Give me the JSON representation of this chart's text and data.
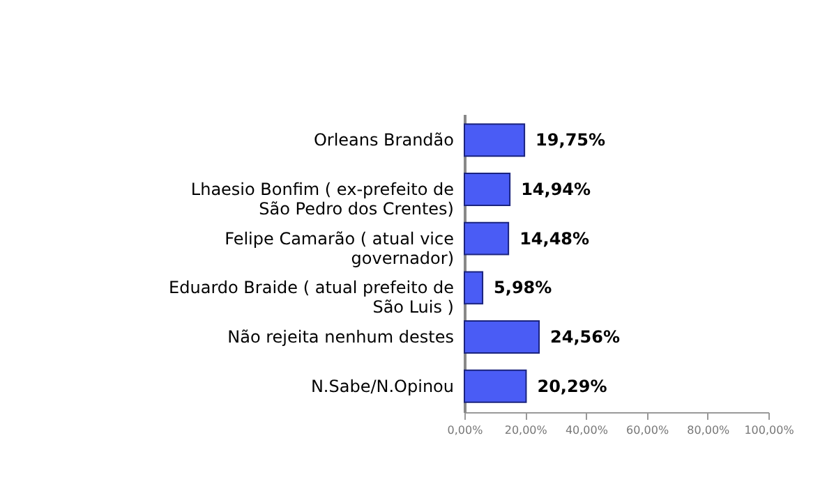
{
  "chart_data": {
    "type": "bar",
    "orientation": "horizontal",
    "categories": [
      "Orleans Brandão",
      "Lhaesio Bonfim ( ex-prefeito de São Pedro dos Crentes)",
      "Felipe Camarão ( atual vice governador)",
      "Eduardo Braide ( atual prefeito de São Luis )",
      "Não rejeita nenhum destes",
      "N.Sabe/N.Opinou"
    ],
    "values": [
      19.75,
      14.94,
      14.48,
      5.98,
      24.56,
      20.29
    ],
    "value_labels": [
      "19,75%",
      "14,94%",
      "14,48%",
      "5,98%",
      "24,56%",
      "20,29%"
    ],
    "color": "#4a5cf5",
    "xlim": [
      0,
      100
    ],
    "xticks": [
      {
        "value": 0,
        "label": "0,00%"
      },
      {
        "value": 20,
        "label": "20,00%"
      },
      {
        "value": 40,
        "label": "40,00%"
      },
      {
        "value": 60,
        "label": "60,00%"
      },
      {
        "value": 80,
        "label": "80,00%"
      },
      {
        "value": 100,
        "label": "100,00%"
      }
    ],
    "grid": false
  }
}
